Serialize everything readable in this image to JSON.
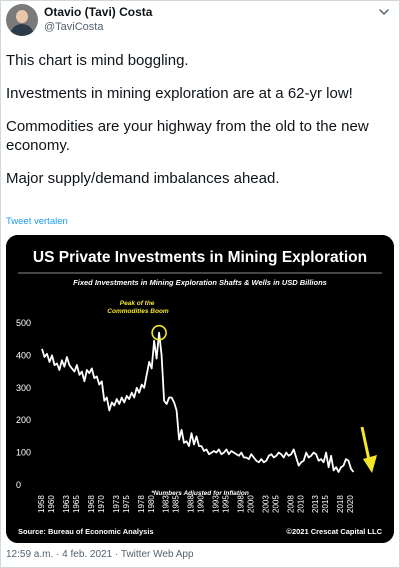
{
  "author": {
    "name": "Otavio (Tavi) Costa",
    "handle": "@TaviCosta"
  },
  "icons": {
    "avatar": "avatar",
    "more": "chevron-down-icon"
  },
  "tweet": {
    "paragraphs": [
      "This chart is mind boggling.",
      "Investments in mining exploration are at a 62-yr low!",
      "Commodities are your highway from the old to the new economy.",
      "Major supply/demand imbalances ahead."
    ],
    "translate_link": "Tweet vertalen"
  },
  "chart_data": {
    "type": "line",
    "title": "US Private Investments in Mining Exploration",
    "subtitle": "Fixed Investments in Mining Exploration Shafts & Wells in USD Billions",
    "annotation": "Peak of the Commodities Boom",
    "footnote": "*Numbers Adjusted for Inflation",
    "source": "Source: Bureau of Economic Analysis",
    "copyright": "©2021 Crescat Capital LLC",
    "ylim": [
      0,
      500
    ],
    "yticks": [
      "0",
      "100",
      "200",
      "300",
      "400",
      "500"
    ],
    "xlim": [
      1958,
      2021
    ],
    "xticks": [
      "1958",
      "1960",
      "1963",
      "1965",
      "1968",
      "1970",
      "1973",
      "1975",
      "1978",
      "1980",
      "1983",
      "1985",
      "1988",
      "1990",
      "1993",
      "1995",
      "1998",
      "2000",
      "2003",
      "2005",
      "2008",
      "2010",
      "2013",
      "2015",
      "2018",
      "2020"
    ],
    "line_color": "#ffffff",
    "arrow_color": "#f5e62a",
    "series": [
      {
        "x": [
          1958,
          1958.5,
          1959,
          1959.5,
          1960,
          1960.5,
          1961,
          1961.5,
          1962,
          1962.5,
          1963,
          1963.5,
          1964,
          1964.5,
          1965,
          1965.5,
          1966,
          1966.5,
          1967,
          1967.5,
          1968,
          1968.5,
          1969,
          1969.5,
          1970,
          1970.5,
          1971,
          1971.5,
          1972,
          1972.5,
          1973,
          1973.5,
          1974,
          1974.5,
          1975,
          1975.5,
          1976,
          1976.5,
          1977,
          1977.5,
          1978,
          1978.5,
          1979,
          1979.5,
          1980,
          1980.5,
          1981,
          1981.5,
          1982,
          1982.5,
          1983,
          1983.5,
          1984,
          1984.5,
          1985,
          1985.5,
          1986,
          1986.5,
          1987,
          1987.5,
          1988,
          1988.5,
          1989,
          1989.5,
          1990,
          1990.5,
          1991,
          1991.5,
          1992,
          1992.5,
          1993,
          1993.5,
          1994,
          1994.5,
          1995,
          1995.5,
          1996,
          1996.5,
          1997,
          1997.5,
          1998,
          1998.5,
          1999,
          1999.5,
          2000,
          2000.5,
          2001,
          2001.5,
          2002,
          2002.5,
          2003,
          2003.5,
          2004,
          2004.5,
          2005,
          2005.5,
          2006,
          2006.5,
          2007,
          2007.5,
          2008,
          2008.5,
          2009,
          2009.5,
          2010,
          2010.5,
          2011,
          2011.5,
          2012,
          2012.5,
          2013,
          2013.5,
          2014,
          2014.5,
          2015,
          2015.5,
          2016,
          2016.5,
          2017,
          2017.5,
          2018,
          2018.5,
          2019,
          2019.5,
          2020,
          2020.5
        ],
        "y": [
          420,
          395,
          405,
          380,
          400,
          370,
          375,
          355,
          385,
          365,
          395,
          370,
          360,
          350,
          370,
          340,
          350,
          320,
          355,
          345,
          360,
          330,
          335,
          310,
          320,
          260,
          270,
          230,
          255,
          245,
          265,
          250,
          270,
          255,
          275,
          265,
          285,
          270,
          300,
          285,
          310,
          300,
          340,
          380,
          360,
          445,
          390,
          470,
          400,
          260,
          250,
          270,
          270,
          255,
          230,
          140,
          170,
          130,
          135,
          120,
          160,
          125,
          150,
          120,
          120,
          105,
          110,
          95,
          100,
          105,
          100,
          110,
          95,
          100,
          110,
          95,
          105,
          100,
          95,
          90,
          100,
          85,
          85,
          80,
          95,
          85,
          75,
          70,
          80,
          70,
          75,
          90,
          95,
          85,
          90,
          100,
          95,
          85,
          100,
          90,
          95,
          110,
          85,
          60,
          70,
          75,
          100,
          85,
          90,
          100,
          95,
          75,
          80,
          70,
          100,
          55,
          90,
          45,
          55,
          40,
          55,
          60,
          80,
          75,
          50,
          40
        ]
      }
    ]
  }
}
